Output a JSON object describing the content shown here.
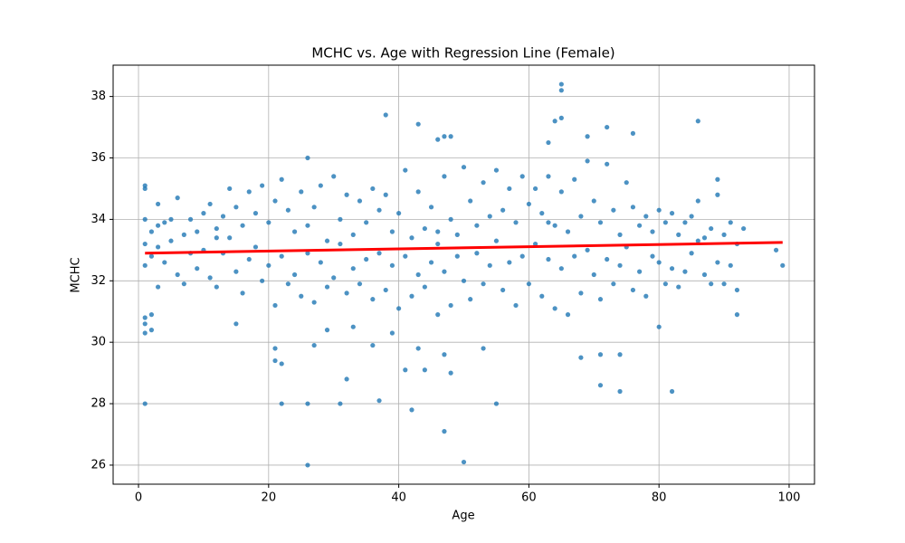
{
  "chart_data": {
    "type": "scatter",
    "title": "MCHC vs. Age with Regression Line (Female)",
    "x_label": "Age",
    "y_label": "MCHC",
    "color": "#1f77b4",
    "grid": true,
    "xlim": [
      -3.9,
      103.9
    ],
    "ylim": [
      25.38,
      39.02
    ],
    "xticks": [
      0,
      20,
      40,
      60,
      80,
      100
    ],
    "yticks": [
      26,
      28,
      30,
      32,
      34,
      36,
      38
    ],
    "x": [
      1,
      1,
      1,
      2,
      2,
      3,
      3,
      3,
      4,
      4,
      5,
      5,
      6,
      6,
      7,
      7,
      8,
      8,
      9,
      9,
      10,
      10,
      11,
      11,
      12,
      12,
      13,
      13,
      14,
      14,
      15,
      15,
      16,
      16,
      17,
      17,
      18,
      18,
      19,
      19,
      20,
      20,
      21,
      21,
      22,
      22,
      23,
      23,
      24,
      24,
      25,
      25,
      26,
      26,
      27,
      27,
      28,
      28,
      29,
      29,
      30,
      30,
      31,
      31,
      32,
      32,
      33,
      33,
      34,
      34,
      35,
      35,
      36,
      36,
      37,
      37,
      38,
      38,
      39,
      39,
      40,
      40,
      41,
      41,
      42,
      42,
      43,
      43,
      44,
      44,
      45,
      45,
      46,
      46,
      47,
      47,
      48,
      48,
      49,
      49,
      50,
      50,
      51,
      51,
      52,
      52,
      53,
      53,
      54,
      54,
      55,
      55,
      56,
      56,
      57,
      57,
      58,
      58,
      59,
      59,
      60,
      60,
      61,
      61,
      62,
      62,
      63,
      63,
      64,
      64,
      65,
      65,
      66,
      66,
      67,
      67,
      68,
      68,
      69,
      69,
      70,
      70,
      71,
      71,
      72,
      72,
      73,
      73,
      74,
      74,
      75,
      75,
      76,
      76,
      77,
      77,
      78,
      78,
      79,
      79,
      80,
      80,
      81,
      81,
      82,
      82,
      83,
      83,
      84,
      84,
      85,
      85,
      86,
      86,
      87,
      87,
      88,
      88,
      89,
      89,
      90,
      90,
      91,
      91,
      92,
      92,
      3,
      12,
      46,
      63,
      1,
      1,
      1,
      1,
      1,
      1,
      2,
      2,
      26,
      26,
      26,
      22,
      31,
      32,
      37,
      38,
      42,
      43,
      46,
      47,
      48,
      47,
      48,
      50,
      55,
      65,
      65,
      64,
      65,
      63,
      69,
      72,
      76,
      86,
      71,
      74,
      82,
      68,
      71,
      74,
      80,
      22,
      21,
      21,
      27,
      29,
      33,
      36,
      39,
      41,
      43,
      44,
      53,
      47,
      99,
      98,
      93,
      92,
      89,
      15
    ],
    "values": [
      33.2,
      32.5,
      34,
      33.6,
      32.8,
      34.5,
      33.1,
      31.8,
      33.9,
      32.6,
      34,
      33.3,
      34.7,
      32.2,
      33.5,
      31.9,
      34,
      32.9,
      33.6,
      32.4,
      34.2,
      33,
      34.5,
      32.1,
      33.7,
      31.8,
      34.1,
      32.9,
      35,
      33.4,
      34.4,
      32.3,
      33.8,
      31.6,
      34.9,
      32.7,
      34.2,
      33.1,
      35.1,
      32,
      33.9,
      32.5,
      34.6,
      31.2,
      35.3,
      32.8,
      34.3,
      31.9,
      33.6,
      32.2,
      34.9,
      31.5,
      33.8,
      32.9,
      34.4,
      31.3,
      35.1,
      32.6,
      33.3,
      31.8,
      35.4,
      32.1,
      34,
      33.2,
      34.8,
      31.6,
      33.5,
      32.4,
      34.6,
      31.9,
      33.9,
      32.7,
      35,
      31.4,
      34.3,
      32.9,
      34.8,
      31.7,
      33.6,
      32.5,
      34.2,
      31.1,
      35.6,
      32.8,
      33.4,
      31.5,
      34.9,
      32.2,
      33.7,
      31.8,
      34.4,
      32.6,
      33.2,
      30.9,
      35.4,
      32.3,
      34,
      31.2,
      33.5,
      32.8,
      35.7,
      32,
      34.6,
      31.4,
      33.8,
      32.9,
      35.2,
      31.9,
      34.1,
      32.5,
      35.6,
      33.3,
      34.3,
      31.7,
      35,
      32.6,
      33.9,
      31.2,
      35.4,
      32.8,
      34.5,
      31.9,
      35,
      33.2,
      34.2,
      31.5,
      35.4,
      32.7,
      33.8,
      31.1,
      34.9,
      32.4,
      33.6,
      30.9,
      35.3,
      32.8,
      34.1,
      31.6,
      35.9,
      33,
      34.6,
      32.2,
      33.9,
      31.4,
      35.8,
      32.7,
      34.3,
      31.9,
      33.5,
      32.5,
      35.2,
      33.1,
      34.4,
      31.7,
      33.8,
      32.3,
      34.1,
      31.5,
      33.6,
      32.8,
      34.3,
      32.6,
      33.9,
      31.9,
      34.2,
      32.4,
      33.5,
      31.8,
      33.9,
      32.3,
      34.1,
      32.9,
      34.6,
      33.3,
      33.4,
      32.2,
      33.7,
      31.9,
      34.8,
      32.6,
      33.5,
      31.9,
      33.9,
      32.5,
      33.2,
      31.7,
      33.8,
      33.4,
      33.6,
      33.9,
      28,
      35.1,
      35,
      30.3,
      30.6,
      30.8,
      30.4,
      30.9,
      36,
      26,
      28,
      28,
      28,
      28.8,
      28.1,
      37.4,
      27.8,
      37.1,
      36.6,
      36.7,
      36.7,
      27.1,
      29,
      26.1,
      28,
      38.4,
      38.2,
      37.2,
      37.3,
      36.5,
      36.7,
      37,
      36.8,
      37.2,
      28.6,
      28.4,
      28.4,
      29.5,
      29.6,
      29.6,
      30.5,
      29.3,
      29.4,
      29.8,
      29.9,
      30.4,
      30.5,
      29.9,
      30.3,
      29.1,
      29.8,
      29.1,
      29.8,
      29.6,
      32.5,
      33,
      33.7,
      30.9,
      35.3,
      30.6
    ],
    "regression": {
      "color": "#ff0000",
      "x": [
        1,
        99
      ],
      "values": [
        32.9,
        33.25
      ]
    }
  }
}
